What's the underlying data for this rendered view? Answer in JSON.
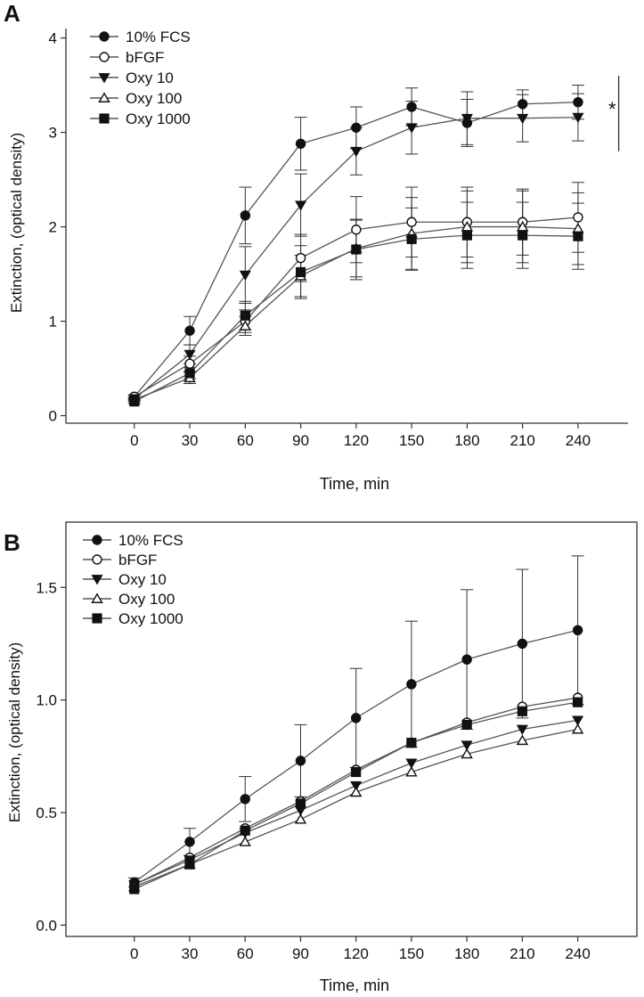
{
  "chart_data": [
    {
      "type": "line",
      "panel_label": "A",
      "xlabel": "Time, min",
      "ylabel": "Extinction, (optical density)",
      "x": [
        0,
        30,
        60,
        90,
        120,
        150,
        180,
        210,
        240
      ],
      "x_tick_labels": [
        "0",
        "30",
        "60",
        "90",
        "120",
        "150",
        "180",
        "210",
        "240"
      ],
      "y_ticks": [
        0,
        1,
        2,
        3,
        4
      ],
      "y_tick_labels": [
        "0",
        "1",
        "2",
        "3",
        "4"
      ],
      "xlim": [
        -37,
        267
      ],
      "ylim": [
        -0.08,
        4.1
      ],
      "frame": "open-axes",
      "legend": "top-left",
      "significance": {
        "label": "*",
        "y_range": [
          2.8,
          3.6
        ],
        "x_position": 262
      },
      "series": [
        {
          "name": "10% FCS",
          "marker": "filled-circle",
          "values": [
            0.2,
            0.9,
            2.12,
            2.88,
            3.05,
            3.27,
            3.1,
            3.3,
            3.32
          ],
          "errors": [
            0.02,
            0.15,
            0.3,
            0.28,
            0.22,
            0.2,
            0.25,
            0.15,
            0.18
          ]
        },
        {
          "name": "bFGF",
          "marker": "open-circle",
          "values": [
            0.2,
            0.55,
            1.0,
            1.67,
            1.97,
            2.05,
            2.05,
            2.05,
            2.1
          ],
          "errors": [
            0.02,
            0.08,
            0.12,
            0.25,
            0.35,
            0.37,
            0.37,
            0.35,
            0.37
          ]
        },
        {
          "name": "Oxy 10",
          "marker": "filled-triangle-down",
          "values": [
            0.18,
            0.65,
            1.49,
            2.23,
            2.8,
            3.05,
            3.15,
            3.15,
            3.16
          ],
          "errors": [
            0.02,
            0.1,
            0.3,
            0.33,
            0.25,
            0.28,
            0.28,
            0.25,
            0.25
          ]
        },
        {
          "name": "Oxy 100",
          "marker": "open-triangle-up",
          "values": [
            0.17,
            0.4,
            0.95,
            1.48,
            1.77,
            1.93,
            2.0,
            2.0,
            1.98
          ],
          "errors": [
            0.02,
            0.06,
            0.1,
            0.22,
            0.3,
            0.38,
            0.38,
            0.38,
            0.38
          ]
        },
        {
          "name": "Oxy 1000",
          "marker": "filled-square",
          "values": [
            0.15,
            0.45,
            1.06,
            1.52,
            1.76,
            1.87,
            1.91,
            1.91,
            1.9
          ],
          "errors": [
            0.02,
            0.06,
            0.15,
            0.28,
            0.32,
            0.33,
            0.35,
            0.35,
            0.35
          ]
        }
      ]
    },
    {
      "type": "line",
      "panel_label": "B",
      "xlabel": "Time, min",
      "ylabel": "Extinction, (optical density)",
      "x": [
        0,
        30,
        60,
        90,
        120,
        150,
        180,
        210,
        240
      ],
      "x_tick_labels": [
        "0",
        "30",
        "60",
        "90",
        "120",
        "150",
        "180",
        "210",
        "240"
      ],
      "y_ticks": [
        0.0,
        0.5,
        1.0,
        1.5
      ],
      "y_tick_labels": [
        "0.0",
        "0.5",
        "1.0",
        "1.5"
      ],
      "xlim": [
        -37,
        272
      ],
      "ylim": [
        -0.05,
        1.79
      ],
      "frame": "box",
      "legend": "top-left",
      "series": [
        {
          "name": "10% FCS",
          "marker": "filled-circle",
          "values": [
            0.19,
            0.37,
            0.56,
            0.73,
            0.92,
            1.07,
            1.18,
            1.25,
            1.31
          ],
          "errors": [
            0.02,
            0.06,
            0.1,
            0.16,
            0.22,
            0.28,
            0.31,
            0.33,
            0.33
          ]
        },
        {
          "name": "bFGF",
          "marker": "open-circle",
          "values": [
            0.18,
            0.3,
            0.43,
            0.55,
            0.69,
            0.81,
            0.9,
            0.97,
            1.01
          ]
        },
        {
          "name": "Oxy 10",
          "marker": "filled-triangle-down",
          "values": [
            0.18,
            0.29,
            0.41,
            0.51,
            0.62,
            0.72,
            0.8,
            0.87,
            0.91
          ]
        },
        {
          "name": "Oxy 100",
          "marker": "open-triangle-up",
          "values": [
            0.17,
            0.27,
            0.37,
            0.47,
            0.59,
            0.68,
            0.76,
            0.82,
            0.87
          ]
        },
        {
          "name": "Oxy 1000",
          "marker": "filled-square",
          "values": [
            0.16,
            0.27,
            0.42,
            0.54,
            0.68,
            0.81,
            0.89,
            0.95,
            0.99
          ]
        }
      ]
    }
  ]
}
